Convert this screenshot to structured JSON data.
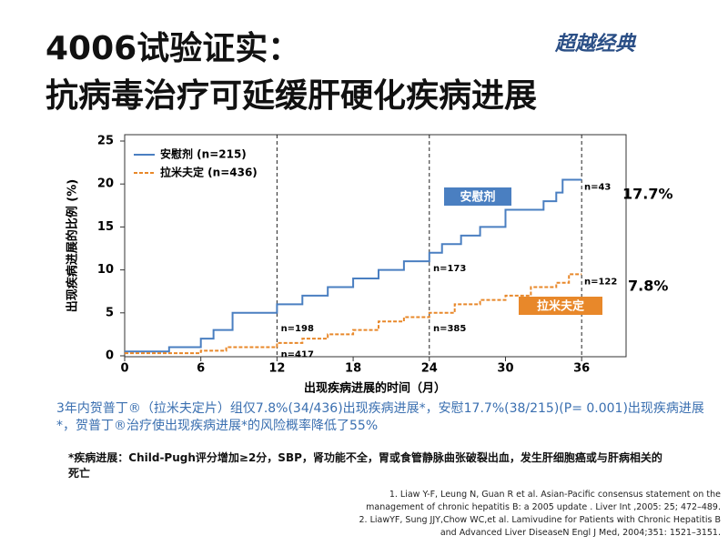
{
  "slide": {
    "title_line1": "4006试验证实：",
    "title_line2": "抗病毒治疗可延缓肝硬化疾病进展",
    "logo": "超越经典",
    "caption": "3年内贺普丁®（拉米夫定片）组仅7.8%(34/436)出现疾病进展*，安慰17.7%(38/215)(P= 0.001)出现疾病进展*，贺普丁®治疗使出现疾病进展*的风险概率降低了55%",
    "footnote": "*疾病进展：Child-Pugh评分增加≥2分，SBP，肾功能不全，胃或食管静脉曲张破裂出血，发生肝细胞癌或与肝病相关的死亡",
    "references": [
      "1. Liaw Y-F, Leung N, Guan R et al. Asian-Pacific consensus statement  on the management of chronic hepatitis B: a 2005  update . Liver Int ,2005:  25;  472–489.",
      "2.  LiawYF, Sung JJY,Chow WC,et al. Lamivudine for Patients with Chronic Hepatitis B and Advanced Liver DiseaseN  Engl J Med, 2004;351:  1521–3151."
    ]
  },
  "chart_data": {
    "type": "line",
    "x_label": "出现疾病进展的时间（月）",
    "y_label": "出现疾病进展的比例 (%)",
    "xlim": [
      0,
      39.5
    ],
    "ylim": [
      0,
      25
    ],
    "xticks": [
      0,
      6,
      12,
      18,
      24,
      30,
      36
    ],
    "yticks": [
      0,
      5,
      10,
      15,
      20,
      25
    ],
    "vlines": [
      12,
      24,
      36
    ],
    "series": [
      {
        "name": "安慰剂 (n=215)",
        "color": "#4a7fc1",
        "dash": false,
        "box_label": "安慰剂",
        "final_label": "17.7%",
        "x": [
          0,
          3.5,
          3.5,
          6,
          6,
          7,
          7,
          8.5,
          8.5,
          12,
          12,
          14,
          14,
          16,
          16,
          18,
          18,
          20,
          20,
          22,
          22,
          24,
          24,
          25,
          25,
          26.5,
          26.5,
          28,
          28,
          30,
          30,
          33,
          33,
          34,
          34,
          34.5,
          34.5,
          36
        ],
        "values": [
          0.5,
          0.5,
          1,
          1,
          2,
          2,
          3,
          3,
          5,
          5,
          6,
          6,
          7,
          7,
          8,
          8,
          9,
          9,
          10,
          10,
          11,
          11,
          12,
          12,
          13,
          13,
          14,
          14,
          15,
          15,
          17,
          17,
          18,
          18,
          19,
          19,
          20.5,
          20.5
        ]
      },
      {
        "name": "拉米夫定 (n=436)",
        "color": "#e8882a",
        "dash": true,
        "box_label": "拉米夫定",
        "final_label": "7.8%",
        "x": [
          0,
          6,
          6,
          8,
          8,
          12,
          12,
          14,
          14,
          16,
          16,
          18,
          18,
          20,
          20,
          22,
          22,
          24,
          24,
          26,
          26,
          28,
          28,
          30,
          30,
          32,
          32,
          34,
          34,
          35,
          35,
          36
        ],
        "values": [
          0.3,
          0.3,
          0.6,
          0.6,
          1,
          1,
          1.5,
          1.5,
          2,
          2,
          2.5,
          2.5,
          3,
          3,
          4,
          4,
          4.5,
          4.5,
          5,
          5,
          6,
          6,
          6.5,
          6.5,
          7,
          7,
          8,
          8,
          8.5,
          8.5,
          9.5,
          9.5
        ]
      }
    ],
    "annotations": [
      {
        "text": "n=198",
        "x": 12.3,
        "y": 4
      },
      {
        "text": "n=417",
        "x": 12.3,
        "y": 1
      },
      {
        "text": "n=173",
        "x": 24.3,
        "y": 11
      },
      {
        "text": "n=385",
        "x": 24.3,
        "y": 4
      },
      {
        "text": "n=43",
        "x": 36.2,
        "y": 20.5
      },
      {
        "text": "n=122",
        "x": 36.2,
        "y": 9.5
      }
    ]
  }
}
